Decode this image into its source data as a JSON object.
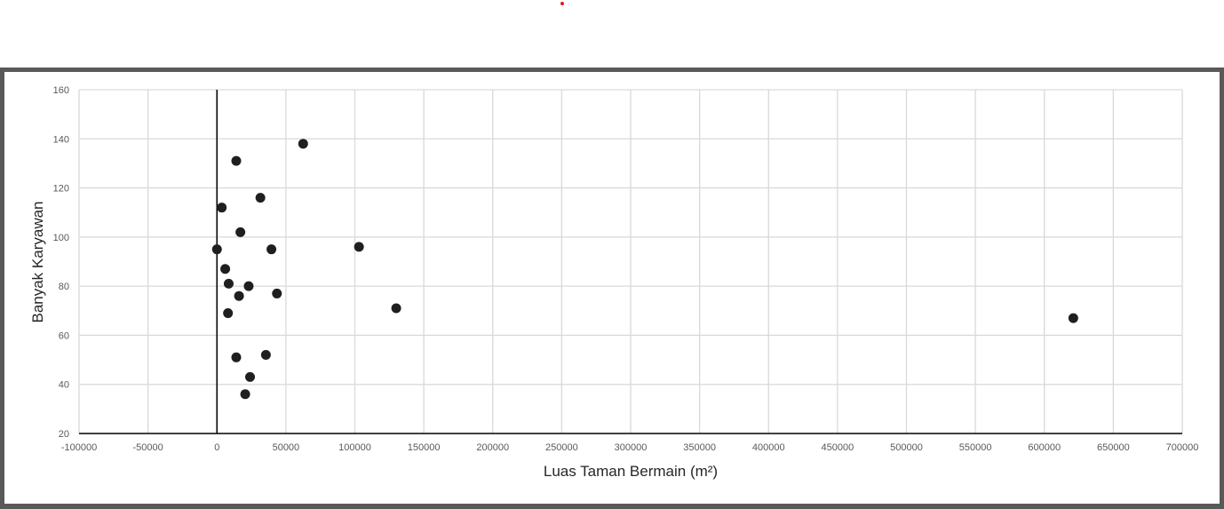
{
  "colors": {
    "marker": "#1f1f1f",
    "grid": "#d9d9d9",
    "axis": "#000000",
    "frame": "#595959",
    "red_dot": "#e31a1c"
  },
  "chart_data": {
    "type": "scatter",
    "title": "",
    "xlabel": "Luas Taman Bermain (m²)",
    "ylabel": "Banyak Karyawan",
    "xlim": [
      -100000,
      700000
    ],
    "ylim": [
      20,
      160
    ],
    "x_ticks": [
      -100000,
      -50000,
      0,
      50000,
      100000,
      150000,
      200000,
      250000,
      300000,
      350000,
      400000,
      450000,
      500000,
      550000,
      600000,
      650000,
      700000
    ],
    "y_ticks": [
      20,
      40,
      60,
      80,
      100,
      120,
      140,
      160
    ],
    "x_tick_labels": [
      "-100000",
      "-50000",
      "0",
      "50000",
      "100000",
      "150000",
      "200000",
      "250000",
      "300000",
      "350000",
      "400000",
      "450000",
      "500000",
      "550000",
      "600000",
      "650000",
      "700000"
    ],
    "y_tick_labels": [
      "20",
      "40",
      "60",
      "80",
      "100",
      "120",
      "140",
      "160"
    ],
    "grid": true,
    "legend": "none",
    "series": [
      {
        "points": [
          {
            "x": 0,
            "y": 95
          },
          {
            "x": 3500,
            "y": 112
          },
          {
            "x": 6000,
            "y": 87
          },
          {
            "x": 8500,
            "y": 81
          },
          {
            "x": 8000,
            "y": 69
          },
          {
            "x": 14000,
            "y": 131
          },
          {
            "x": 14000,
            "y": 51
          },
          {
            "x": 16000,
            "y": 76
          },
          {
            "x": 17000,
            "y": 102
          },
          {
            "x": 20500,
            "y": 36
          },
          {
            "x": 23000,
            "y": 80
          },
          {
            "x": 24000,
            "y": 43
          },
          {
            "x": 31500,
            "y": 116
          },
          {
            "x": 35500,
            "y": 52
          },
          {
            "x": 39500,
            "y": 95
          },
          {
            "x": 43500,
            "y": 77
          },
          {
            "x": 62500,
            "y": 138
          },
          {
            "x": 103000,
            "y": 96
          },
          {
            "x": 130000,
            "y": 71
          },
          {
            "x": 621000,
            "y": 67
          }
        ]
      }
    ]
  }
}
